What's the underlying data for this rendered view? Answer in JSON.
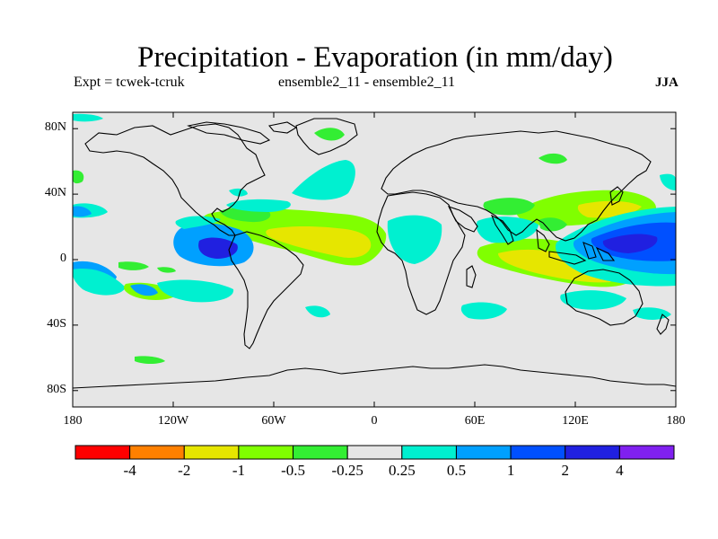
{
  "title": "Precipitation - Evaporation (in mm/day)",
  "experiment": "Expt = tcwek-tcruk",
  "ensemble": "ensemble2_11 - ensemble2_11",
  "season": "JJA",
  "map": {
    "projection": "cylindrical-equidistant",
    "lon_range": [
      -180,
      180
    ],
    "lat_range": [
      -90,
      90
    ],
    "ocean_background": "#e6e6e6",
    "coastline_color": "#000000"
  },
  "lat_ticks": [
    {
      "value": 80,
      "label": "80N"
    },
    {
      "value": 40,
      "label": "40N"
    },
    {
      "value": 0,
      "label": "0"
    },
    {
      "value": -40,
      "label": "40S"
    },
    {
      "value": -80,
      "label": "80S"
    }
  ],
  "lon_ticks": [
    {
      "value": -180,
      "label": "180"
    },
    {
      "value": -120,
      "label": "120W"
    },
    {
      "value": -60,
      "label": "60W"
    },
    {
      "value": 0,
      "label": "0"
    },
    {
      "value": 60,
      "label": "60E"
    },
    {
      "value": 120,
      "label": "120E"
    },
    {
      "value": 180,
      "label": "180"
    }
  ],
  "colorbar": {
    "colors": [
      "#ff0000",
      "#ff8000",
      "#e6e600",
      "#80ff00",
      "#33ee33",
      "#e6e6e6",
      "#00f0d0",
      "#00a0ff",
      "#0050ff",
      "#2020e0",
      "#8020f0"
    ],
    "labels": [
      "-4",
      "-2",
      "-1",
      "-0.5",
      "-0.25",
      "0.25",
      "0.5",
      "1",
      "2",
      "4"
    ]
  }
}
